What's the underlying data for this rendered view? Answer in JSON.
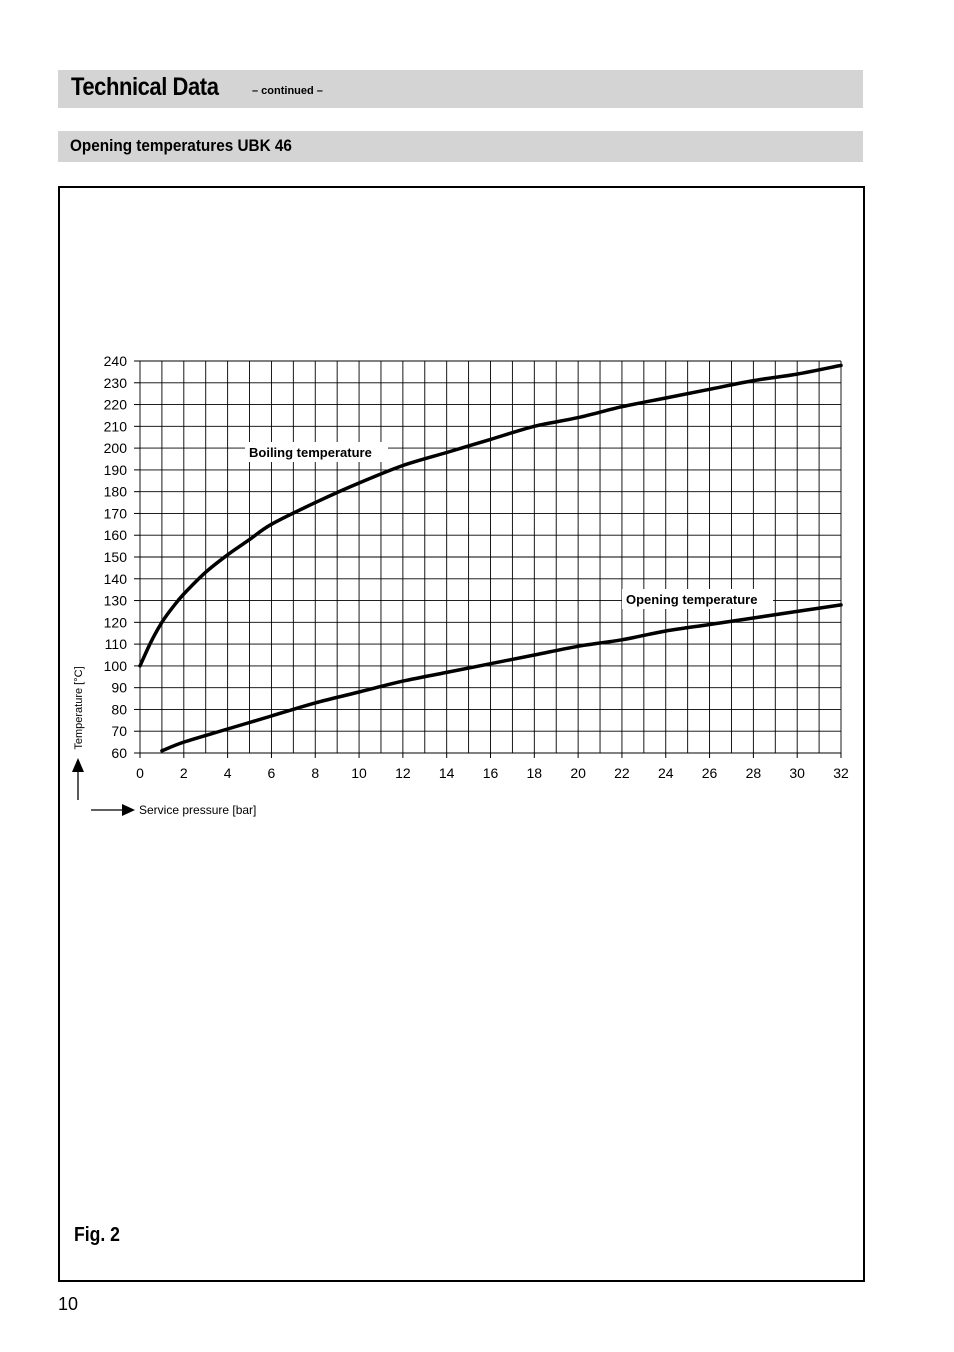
{
  "header": {
    "title": "Technical Data",
    "subtitle": "– continued –"
  },
  "section": {
    "title": "Opening temperatures UBK 46"
  },
  "figure": {
    "caption": "Fig. 2"
  },
  "page": {
    "number": "10"
  },
  "chart_data": {
    "type": "line",
    "title": "",
    "xlabel": "Service pressure [bar]",
    "ylabel": "Temperature [°C]",
    "xlim": [
      0,
      32
    ],
    "ylim": [
      60,
      240
    ],
    "xticks": [
      0,
      2,
      4,
      6,
      8,
      10,
      12,
      14,
      16,
      18,
      20,
      22,
      24,
      26,
      28,
      30,
      32
    ],
    "yticks": [
      60,
      70,
      80,
      90,
      100,
      110,
      120,
      130,
      140,
      150,
      160,
      170,
      180,
      190,
      200,
      210,
      220,
      230,
      240
    ],
    "grid": true,
    "series": [
      {
        "name": "Boiling temperature",
        "x": [
          0,
          0.5,
          1,
          1.5,
          2,
          3,
          4,
          5,
          6,
          8,
          10,
          12,
          14,
          16,
          18,
          20,
          22,
          24,
          26,
          28,
          30,
          32
        ],
        "y": [
          100,
          111,
          120,
          127,
          133,
          143,
          151,
          158,
          165,
          175,
          184,
          192,
          198,
          204,
          210,
          214,
          219,
          223,
          227,
          231,
          234,
          238
        ]
      },
      {
        "name": "Opening temperature",
        "x": [
          1,
          2,
          4,
          6,
          8,
          10,
          12,
          14,
          16,
          18,
          20,
          22,
          24,
          26,
          28,
          30,
          32
        ],
        "y": [
          61,
          65,
          71,
          77,
          83,
          88,
          93,
          97,
          101,
          105,
          109,
          112,
          116,
          119,
          122,
          125,
          128
        ]
      }
    ]
  }
}
